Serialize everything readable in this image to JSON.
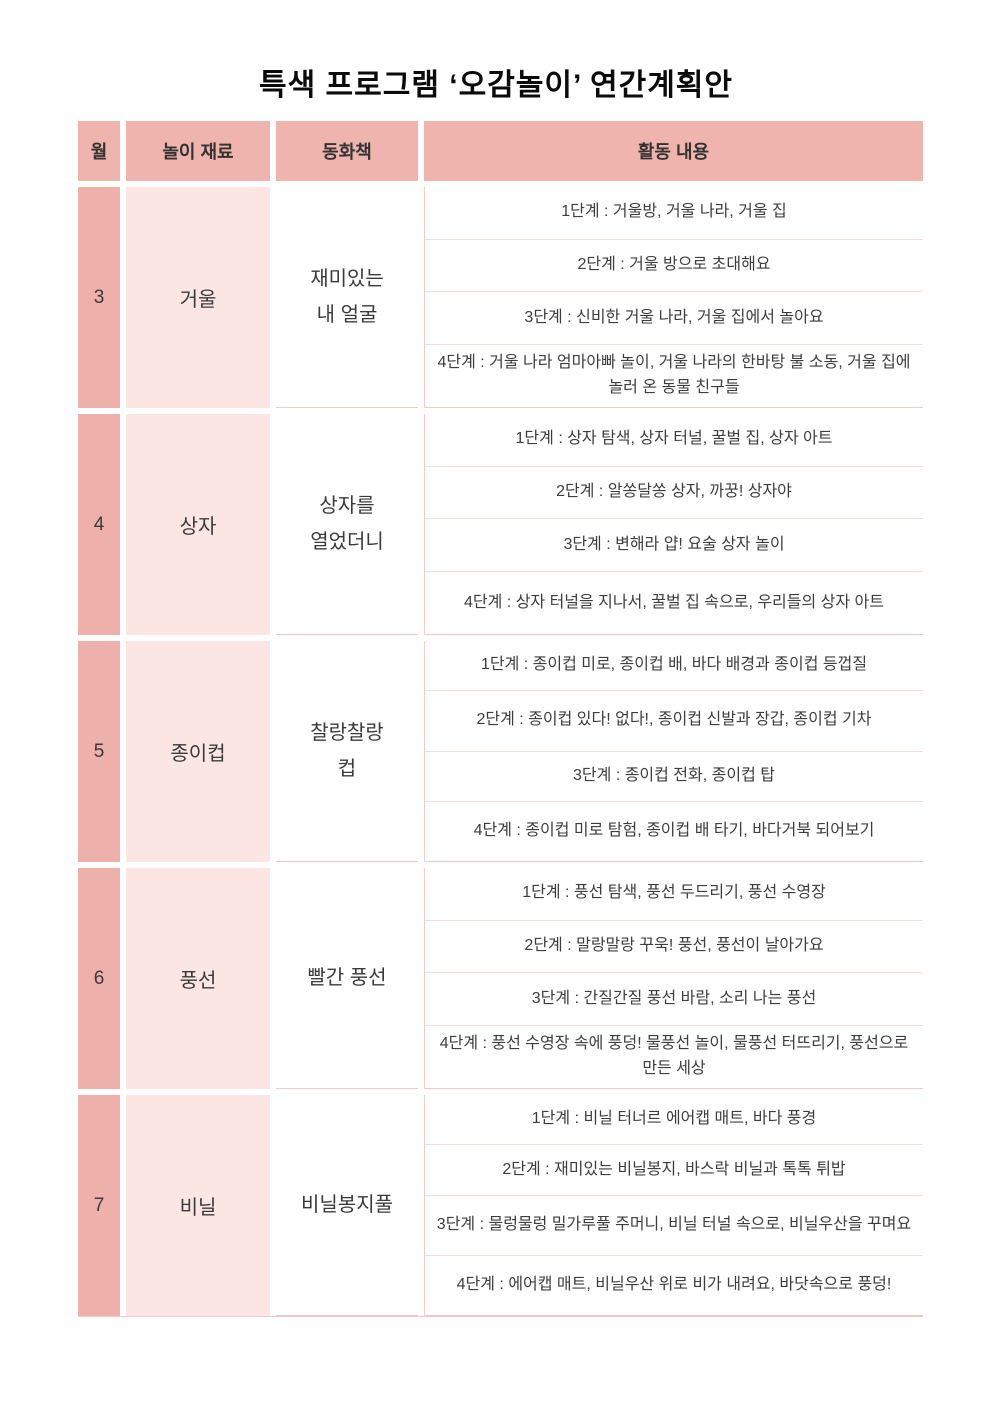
{
  "title": "특색 프로그램 ‘오감놀이’ 연간계획안",
  "colors": {
    "header_pink": "#f0b4ae",
    "month_pink": "#eeb0aa",
    "material_pink": "#fce6e4",
    "divider_pink": "#f7dcd9",
    "block_line_pink": "#f0c9c5",
    "text": "#3a3a3a"
  },
  "table": {
    "headers": [
      "월",
      "놀이 재료",
      "동화책",
      "활동 내용"
    ],
    "rows": [
      {
        "month": "3",
        "material": "거울",
        "book_lines": [
          "재미있는",
          "내 얼굴"
        ],
        "activities": [
          "1단계 : 거울방, 거울 나라, 거울 집",
          "2단계 : 거울 방으로 초대해요",
          "3단계 : 신비한 거울 나라, 거울 집에서 놀아요",
          "4단계 : 거울 나라 엄마아빠 놀이, 거울 나라의 한바탕 불 소동, 거울 집에 놀러 온 동물 친구들"
        ]
      },
      {
        "month": "4",
        "material": "상자",
        "book_lines": [
          "상자를",
          "열었더니"
        ],
        "activities": [
          "1단계 : 상자 탐색, 상자 터널, 꿀벌 집, 상자 아트",
          "2단계 : 알쏭달쏭 상자, 까꿍! 상자야",
          "3단계 : 변해라 얍! 요술 상자 놀이",
          "4단계 : 상자 터널을 지나서, 꿀벌 집 속으로, 우리들의 상자 아트"
        ]
      },
      {
        "month": "5",
        "material": "종이컵",
        "book_lines": [
          "찰랑찰랑",
          "컵"
        ],
        "activities": [
          "1단계 : 종이컵 미로, 종이컵 배, 바다 배경과 종이컵 등껍질",
          "2단계 : 종이컵 있다! 없다!, 종이컵 신발과 장갑, 종이컵 기차",
          "3단계 : 종이컵 전화, 종이컵 탑",
          "4단계 : 종이컵 미로 탐험, 종이컵 배 타기, 바다거북 되어보기"
        ]
      },
      {
        "month": "6",
        "material": "풍선",
        "book_lines": [
          "빨간 풍선"
        ],
        "activities": [
          "1단계 : 풍선 탐색, 풍선 두드리기, 풍선 수영장",
          "2단계 : 말랑말랑 꾸욱! 풍선, 풍선이 날아가요",
          "3단계 : 간질간질 풍선 바람, 소리 나는 풍선",
          "4단계 : 풍선 수영장 속에 풍덩! 물풍선 놀이, 물풍선 터뜨리기, 풍선으로 만든 세상"
        ]
      },
      {
        "month": "7",
        "material": "비닐",
        "book_lines": [
          "비닐봉지풀"
        ],
        "activities": [
          "1단계 : 비닐 터너르 에어캡 매트, 바다 풍경",
          "2단계 : 재미있는 비닐봉지, 바스락 비닐과 톡톡 튀밥",
          "3단계 : 물렁물렁 밀가루풀 주머니, 비닐 터널 속으로, 비닐우산을 꾸며요",
          "4단계 : 에어캡 매트, 비닐우산 위로 비가 내려요, 바닷속으로 풍덩!"
        ]
      }
    ]
  }
}
